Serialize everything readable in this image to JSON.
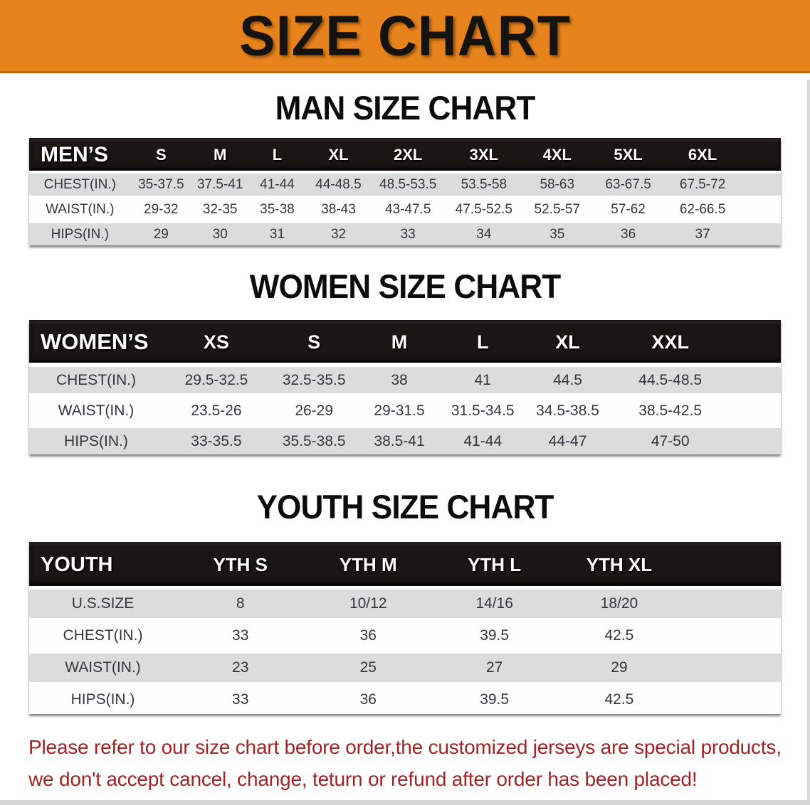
{
  "banner": {
    "title": "SIZE CHART",
    "bg_color": "#E6831C"
  },
  "colors": {
    "banner_bg": "#E6831C",
    "table_header_bg": "#1B1514",
    "row_stripe": "#DCDCDC",
    "notice_text": "#A12424"
  },
  "sections": [
    {
      "heading": "MAN SIZE CHART",
      "group_label": "MEN’S",
      "sizes": [
        "S",
        "M",
        "L",
        "XL",
        "2XL",
        "3XL",
        "4XL",
        "5XL",
        "6XL"
      ],
      "rows": [
        {
          "label": "CHEST(IN.)",
          "values": [
            "35-37.5",
            "37.5-41",
            "41-44",
            "44-48.5",
            "48.5-53.5",
            "53.5-58",
            "58-63",
            "63-67.5",
            "67.5-72"
          ]
        },
        {
          "label": "WAIST(IN.)",
          "values": [
            "29-32",
            "32-35",
            "35-38",
            "38-43",
            "43-47.5",
            "47.5-52.5",
            "52.5-57",
            "57-62",
            "62-66.5"
          ]
        },
        {
          "label": "HIPS(IN.)",
          "values": [
            "29",
            "30",
            "31",
            "32",
            "33",
            "34",
            "35",
            "36",
            "37"
          ]
        }
      ]
    },
    {
      "heading": "WOMEN SIZE CHART",
      "group_label": "WOMEN’S",
      "sizes": [
        "XS",
        "S",
        "M",
        "L",
        "XL",
        "XXL"
      ],
      "rows": [
        {
          "label": "CHEST(IN.)",
          "values": [
            "29.5-32.5",
            "32.5-35.5",
            "38",
            "41",
            "44.5",
            "44.5-48.5"
          ]
        },
        {
          "label": "WAIST(IN.)",
          "values": [
            "23.5-26",
            "26-29",
            "29-31.5",
            "31.5-34.5",
            "34.5-38.5",
            "38.5-42.5"
          ]
        },
        {
          "label": "HIPS(IN.)",
          "values": [
            "33-35.5",
            "35.5-38.5",
            "38.5-41",
            "41-44",
            "44-47",
            "47-50"
          ]
        }
      ]
    },
    {
      "heading": "YOUTH SIZE CHART",
      "group_label": "YOUTH",
      "sizes": [
        "YTH S",
        "YTH M",
        "YTH L",
        "YTH XL"
      ],
      "rows": [
        {
          "label": "U.S.SIZE",
          "values": [
            "8",
            "10/12",
            "14/16",
            "18/20"
          ]
        },
        {
          "label": "CHEST(IN.)",
          "values": [
            "33",
            "36",
            "39.5",
            "42.5"
          ]
        },
        {
          "label": "WAIST(IN.)",
          "values": [
            "23",
            "25",
            "27",
            "29"
          ]
        },
        {
          "label": "HIPS(IN.)",
          "values": [
            "33",
            "36",
            "39.5",
            "42.5"
          ]
        }
      ]
    }
  ],
  "footer": {
    "lines": [
      "Please refer to our size chart before order,the customized jerseys are special products,",
      "we don't accept cancel, change, teturn or refund after order has been placed!"
    ]
  }
}
